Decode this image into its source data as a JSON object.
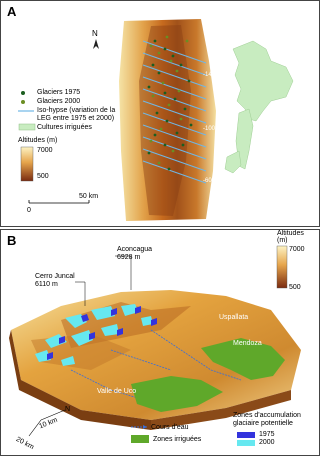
{
  "panel_a": {
    "label": "A",
    "north": "N",
    "legend": {
      "glaciers_1975": "Glaciers 1975",
      "glaciers_2000": "Glaciers 2000",
      "isohypse_line1": "Iso-hypse (variation de la",
      "isohypse_line2": "LEG entre 1975 et 2000)",
      "irrigated": "Cultures irriguées",
      "altitude_title": "Altitudes (m)",
      "alt_max": "7000",
      "alt_min": "500"
    },
    "contour_labels": [
      "-140",
      "-100",
      "-60"
    ],
    "scale_start": "0",
    "scale_end": "50 km",
    "colors": {
      "glacier_1975": "#1b5e20",
      "glacier_2000": "#6b8e23",
      "isohypse": "#6fb7e6",
      "irrigated": "#c8ecc0"
    }
  },
  "panel_b": {
    "label": "B",
    "peaks": [
      {
        "name": "Aconcagua",
        "elev": "6928 m"
      },
      {
        "name": "Cerro Juncal",
        "elev": "6110 m"
      }
    ],
    "places": [
      "Uspallata",
      "Mendoza",
      "Valle de Uco"
    ],
    "altitude": {
      "title1": "Altitudes",
      "title2": "(m)",
      "max": "7000",
      "min": "500"
    },
    "scale": {
      "a": "10 km",
      "b": "20 km",
      "n": "N"
    },
    "legend": {
      "stream": "Cours d'eau",
      "irrigated": "Zones irriguées",
      "accum_title1": "Zones d'accumulation",
      "accum_title2": "glaciaire potentielle",
      "y1975": "1975",
      "y2000": "2000"
    },
    "colors": {
      "accum_1975": "#3333dd",
      "accum_2000": "#66e8f0",
      "irrigated": "#5fa82a",
      "stream": "#3a6fd8"
    }
  }
}
